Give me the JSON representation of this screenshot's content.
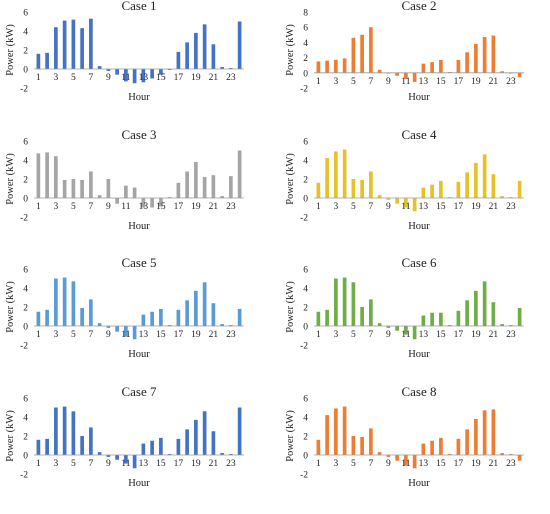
{
  "chart_data": [
    {
      "type": "bar",
      "title": "Case 1",
      "xlabel": "Hour",
      "ylabel": "Power (kW)",
      "ylim": [
        -2,
        6
      ],
      "yticks": [
        -2,
        0,
        2,
        4,
        6
      ],
      "categories": [
        1,
        2,
        3,
        4,
        5,
        6,
        7,
        8,
        9,
        10,
        11,
        12,
        13,
        14,
        15,
        16,
        17,
        18,
        19,
        20,
        21,
        22,
        23,
        24
      ],
      "xtick_labels": [
        "1",
        "3",
        "5",
        "7",
        "9",
        "11",
        "13",
        "15",
        "17",
        "19",
        "21",
        "23"
      ],
      "color": "#4472C4",
      "values": [
        1.6,
        1.7,
        4.4,
        5.1,
        5.2,
        4.3,
        5.3,
        0.3,
        -0.2,
        -0.6,
        -1.3,
        -1.5,
        -1.4,
        -1.0,
        -0.6,
        -0.1,
        1.8,
        2.8,
        3.8,
        4.7,
        2.6,
        0.2,
        0.1,
        5.0
      ]
    },
    {
      "type": "bar",
      "title": "Case 2",
      "xlabel": "Hour",
      "ylabel": "Power (kW)",
      "ylim": [
        -2,
        8
      ],
      "yticks": [
        -2,
        0,
        2,
        4,
        6,
        8
      ],
      "categories": [
        1,
        2,
        3,
        4,
        5,
        6,
        7,
        8,
        9,
        10,
        11,
        12,
        13,
        14,
        15,
        16,
        17,
        18,
        19,
        20,
        21,
        22,
        23,
        24
      ],
      "xtick_labels": [
        "1",
        "3",
        "5",
        "7",
        "9",
        "11",
        "13",
        "15",
        "17",
        "19",
        "21",
        "23"
      ],
      "color": "#ED7D31",
      "values": [
        1.5,
        1.6,
        1.7,
        1.9,
        4.6,
        5.0,
        6.0,
        0.4,
        -0.1,
        -0.4,
        -0.8,
        -1.2,
        1.2,
        1.4,
        1.7,
        0.1,
        1.7,
        2.7,
        3.8,
        4.7,
        4.9,
        0.2,
        -0.1,
        -0.6
      ]
    },
    {
      "type": "bar",
      "title": "Case 3",
      "xlabel": "Hour",
      "ylabel": "Power (kW)",
      "ylim": [
        -2,
        6
      ],
      "yticks": [
        -2,
        0,
        2,
        4,
        6
      ],
      "categories": [
        1,
        2,
        3,
        4,
        5,
        6,
        7,
        8,
        9,
        10,
        11,
        12,
        13,
        14,
        15,
        16,
        17,
        18,
        19,
        20,
        21,
        22,
        23,
        24
      ],
      "xtick_labels": [
        "1",
        "3",
        "5",
        "7",
        "9",
        "11",
        "13",
        "15",
        "17",
        "19",
        "21",
        "23"
      ],
      "color": "#A5A5A5",
      "values": [
        4.7,
        4.8,
        4.4,
        1.9,
        2.0,
        1.9,
        2.8,
        0.3,
        2.0,
        -0.6,
        1.3,
        1.1,
        -1.0,
        -1.0,
        -0.9,
        0.1,
        1.6,
        2.8,
        3.8,
        2.2,
        2.4,
        0.2,
        2.3,
        5.0
      ]
    },
    {
      "type": "bar",
      "title": "Case 4",
      "xlabel": "Hour",
      "ylabel": "Power (kW)",
      "ylim": [
        -2,
        6
      ],
      "yticks": [
        -2,
        0,
        2,
        4,
        6
      ],
      "categories": [
        1,
        2,
        3,
        4,
        5,
        6,
        7,
        8,
        9,
        10,
        11,
        12,
        13,
        14,
        15,
        16,
        17,
        18,
        19,
        20,
        21,
        22,
        23,
        24
      ],
      "xtick_labels": [
        "1",
        "3",
        "5",
        "7",
        "9",
        "11",
        "13",
        "15",
        "17",
        "19",
        "21",
        "23"
      ],
      "color": "#E6C229",
      "values": [
        1.6,
        4.2,
        4.9,
        5.1,
        2.0,
        1.9,
        2.8,
        0.3,
        -0.2,
        -0.6,
        -1.0,
        -1.4,
        1.1,
        1.4,
        1.8,
        0.1,
        1.7,
        2.7,
        3.7,
        4.6,
        2.5,
        0.2,
        0.1,
        1.8
      ]
    },
    {
      "type": "bar",
      "title": "Case 5",
      "xlabel": "Hour",
      "ylabel": "Power (kW)",
      "ylim": [
        -2,
        6
      ],
      "yticks": [
        -2,
        0,
        2,
        4,
        6
      ],
      "categories": [
        1,
        2,
        3,
        4,
        5,
        6,
        7,
        8,
        9,
        10,
        11,
        12,
        13,
        14,
        15,
        16,
        17,
        18,
        19,
        20,
        21,
        22,
        23,
        24
      ],
      "xtick_labels": [
        "1",
        "3",
        "5",
        "7",
        "9",
        "11",
        "13",
        "15",
        "17",
        "19",
        "21",
        "23"
      ],
      "color": "#5B9BD5",
      "values": [
        1.5,
        1.7,
        5.0,
        5.1,
        4.7,
        1.9,
        2.8,
        0.3,
        -0.2,
        -0.6,
        -1.1,
        -1.4,
        1.2,
        1.5,
        1.8,
        0.1,
        1.7,
        2.7,
        3.7,
        4.6,
        2.4,
        0.2,
        0.1,
        1.8
      ]
    },
    {
      "type": "bar",
      "title": "Case 6",
      "xlabel": "Hour",
      "ylabel": "Power (kW)",
      "ylim": [
        -2,
        6
      ],
      "yticks": [
        -2,
        0,
        2,
        4,
        6
      ],
      "categories": [
        1,
        2,
        3,
        4,
        5,
        6,
        7,
        8,
        9,
        10,
        11,
        12,
        13,
        14,
        15,
        16,
        17,
        18,
        19,
        20,
        21,
        22,
        23,
        24
      ],
      "xtick_labels": [
        "1",
        "3",
        "5",
        "7",
        "9",
        "11",
        "13",
        "15",
        "17",
        "19",
        "21",
        "23"
      ],
      "color": "#70AD47",
      "values": [
        1.5,
        1.7,
        5.0,
        5.1,
        4.6,
        2.0,
        2.8,
        0.3,
        -0.2,
        -0.5,
        -0.9,
        -1.4,
        1.1,
        1.4,
        1.4,
        0.1,
        1.6,
        2.7,
        3.7,
        4.7,
        2.5,
        0.2,
        0.1,
        1.9
      ]
    },
    {
      "type": "bar",
      "title": "Case 7",
      "xlabel": "Hour",
      "ylabel": "Power (kW)",
      "ylim": [
        -2,
        6
      ],
      "yticks": [
        -2,
        0,
        2,
        4,
        6
      ],
      "categories": [
        1,
        2,
        3,
        4,
        5,
        6,
        7,
        8,
        9,
        10,
        11,
        12,
        13,
        14,
        15,
        16,
        17,
        18,
        19,
        20,
        21,
        22,
        23,
        24
      ],
      "xtick_labels": [
        "1",
        "3",
        "5",
        "7",
        "9",
        "11",
        "13",
        "15",
        "17",
        "19",
        "21",
        "23"
      ],
      "color": "#4472C4",
      "values": [
        1.6,
        1.7,
        5.0,
        5.1,
        4.6,
        2.0,
        2.9,
        0.3,
        -0.2,
        -0.5,
        -0.9,
        -1.4,
        1.2,
        1.5,
        1.8,
        0.1,
        1.7,
        2.7,
        3.7,
        4.6,
        2.5,
        0.2,
        0.1,
        5.0
      ]
    },
    {
      "type": "bar",
      "title": "Case 8",
      "xlabel": "Hour",
      "ylabel": "Power (kW)",
      "ylim": [
        -2,
        6
      ],
      "yticks": [
        -2,
        0,
        2,
        4,
        6
      ],
      "categories": [
        1,
        2,
        3,
        4,
        5,
        6,
        7,
        8,
        9,
        10,
        11,
        12,
        13,
        14,
        15,
        16,
        17,
        18,
        19,
        20,
        21,
        22,
        23,
        24
      ],
      "xtick_labels": [
        "1",
        "3",
        "5",
        "7",
        "9",
        "11",
        "13",
        "15",
        "17",
        "19",
        "21",
        "23"
      ],
      "color": "#ED7D31",
      "values": [
        1.6,
        4.2,
        4.9,
        5.1,
        2.0,
        1.9,
        2.8,
        0.3,
        -0.2,
        -0.6,
        -1.1,
        -1.4,
        1.2,
        1.5,
        1.8,
        0.1,
        1.7,
        2.7,
        3.8,
        4.7,
        4.8,
        0.2,
        0.1,
        -0.6
      ]
    }
  ]
}
